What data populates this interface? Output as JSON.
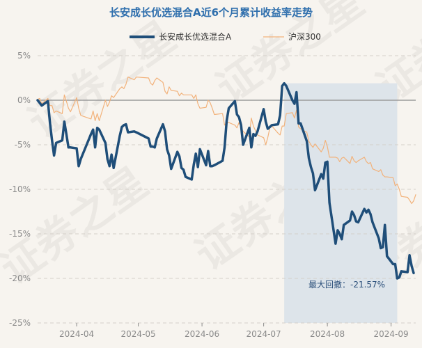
{
  "chart_data": {
    "type": "line",
    "title": "长安成长优选混合A近6个月累计收益率走势",
    "xlabel": "",
    "ylabel": "",
    "ylim": [
      -25,
      5
    ],
    "yticks": [
      "5%",
      "0%",
      "-5%",
      "-10%",
      "-15%",
      "-20%",
      "-25%"
    ],
    "ytick_values": [
      5,
      0,
      -5,
      -10,
      -15,
      -20,
      -25
    ],
    "xticks": [
      "2024-04",
      "2024-05",
      "2024-06",
      "2024-07",
      "2024-08",
      "2024-09"
    ],
    "xtick_dates": [
      "2024-04-01",
      "2024-05-01",
      "2024-06-01",
      "2024-07-01",
      "2024-08-01",
      "2024-09-01"
    ],
    "x_range": [
      "2024-03-13",
      "2024-09-13"
    ],
    "grid": "horizontal dashed",
    "legend_position": "top-center",
    "series": [
      {
        "name": "长安成长优选混合A",
        "color": "#1f4e79",
        "points": [
          [
            "2024-03-13",
            0.0
          ],
          [
            "2024-03-14",
            -0.3
          ],
          [
            "2024-03-15",
            -0.6
          ],
          [
            "2024-03-18",
            -0.1
          ],
          [
            "2024-03-19",
            -2.5
          ],
          [
            "2024-03-20",
            -4.5
          ],
          [
            "2024-03-21",
            -6.2
          ],
          [
            "2024-03-22",
            -4.8
          ],
          [
            "2024-03-25",
            -4.5
          ],
          [
            "2024-03-26",
            -2.4
          ],
          [
            "2024-03-27",
            -3.8
          ],
          [
            "2024-03-28",
            -5.3
          ],
          [
            "2024-03-29",
            -5.3
          ],
          [
            "2024-04-01",
            -5.4
          ],
          [
            "2024-04-02",
            -7.4
          ],
          [
            "2024-04-03",
            -6.6
          ],
          [
            "2024-04-08",
            -3.8
          ],
          [
            "2024-04-09",
            -3.3
          ],
          [
            "2024-04-10",
            -5.3
          ],
          [
            "2024-04-11",
            -3.1
          ],
          [
            "2024-04-12",
            -3.3
          ],
          [
            "2024-04-15",
            -4.8
          ],
          [
            "2024-04-16",
            -6.6
          ],
          [
            "2024-04-17",
            -7.4
          ],
          [
            "2024-04-18",
            -6.1
          ],
          [
            "2024-04-19",
            -7.6
          ],
          [
            "2024-04-22",
            -4.0
          ],
          [
            "2024-04-23",
            -3.0
          ],
          [
            "2024-04-24",
            -2.8
          ],
          [
            "2024-04-25",
            -2.7
          ],
          [
            "2024-04-26",
            -3.6
          ],
          [
            "2024-04-29",
            -3.5
          ],
          [
            "2024-04-30",
            -3.6
          ],
          [
            "2024-05-06",
            -4.3
          ],
          [
            "2024-05-07",
            -5.2
          ],
          [
            "2024-05-08",
            -5.2
          ],
          [
            "2024-05-09",
            -5.3
          ],
          [
            "2024-05-10",
            -4.3
          ],
          [
            "2024-05-13",
            -2.7
          ],
          [
            "2024-05-14",
            -3.5
          ],
          [
            "2024-05-15",
            -5.5
          ],
          [
            "2024-05-16",
            -6.2
          ],
          [
            "2024-05-17",
            -7.7
          ],
          [
            "2024-05-20",
            -5.8
          ],
          [
            "2024-05-21",
            -6.3
          ],
          [
            "2024-05-22",
            -7.6
          ],
          [
            "2024-05-23",
            -7.8
          ],
          [
            "2024-05-24",
            -8.6
          ],
          [
            "2024-05-27",
            -8.9
          ],
          [
            "2024-05-28",
            -7.2
          ],
          [
            "2024-05-29",
            -6.0
          ],
          [
            "2024-05-30",
            -7.5
          ],
          [
            "2024-05-31",
            -5.5
          ],
          [
            "2024-06-03",
            -7.3
          ],
          [
            "2024-06-04",
            -5.7
          ],
          [
            "2024-06-05",
            -7.4
          ],
          [
            "2024-06-06",
            -7.4
          ],
          [
            "2024-06-07",
            -7.3
          ],
          [
            "2024-06-11",
            -6.8
          ],
          [
            "2024-06-12",
            -5.3
          ],
          [
            "2024-06-13",
            -2.3
          ],
          [
            "2024-06-14",
            -0.9
          ],
          [
            "2024-06-17",
            -0.1
          ],
          [
            "2024-06-18",
            -1.6
          ],
          [
            "2024-06-19",
            -1.9
          ],
          [
            "2024-06-20",
            -2.8
          ],
          [
            "2024-06-21",
            -5.0
          ],
          [
            "2024-06-24",
            -3.1
          ],
          [
            "2024-06-25",
            -5.3
          ],
          [
            "2024-06-26",
            -3.8
          ],
          [
            "2024-06-27",
            -4.0
          ],
          [
            "2024-06-28",
            -3.5
          ],
          [
            "2024-07-01",
            -1.0
          ],
          [
            "2024-07-02",
            -2.4
          ],
          [
            "2024-07-03",
            -3.2
          ],
          [
            "2024-07-04",
            -3.0
          ],
          [
            "2024-07-05",
            -2.8
          ],
          [
            "2024-07-08",
            -2.7
          ],
          [
            "2024-07-09",
            -1.7
          ],
          [
            "2024-07-10",
            1.6
          ],
          [
            "2024-07-11",
            1.9
          ],
          [
            "2024-07-12",
            1.6
          ],
          [
            "2024-07-15",
            0.0
          ],
          [
            "2024-07-16",
            -0.4
          ],
          [
            "2024-07-17",
            0.9
          ],
          [
            "2024-07-18",
            -2.6
          ],
          [
            "2024-07-19",
            -2.6
          ],
          [
            "2024-07-22",
            -4.6
          ],
          [
            "2024-07-23",
            -6.5
          ],
          [
            "2024-07-24",
            -7.5
          ],
          [
            "2024-07-25",
            -8.2
          ],
          [
            "2024-07-26",
            -10.1
          ],
          [
            "2024-07-29",
            -8.3
          ],
          [
            "2024-07-30",
            -8.8
          ],
          [
            "2024-07-31",
            -7.0
          ],
          [
            "2024-08-01",
            -6.9
          ],
          [
            "2024-08-02",
            -11.5
          ],
          [
            "2024-08-05",
            -16.1
          ],
          [
            "2024-08-06",
            -14.6
          ],
          [
            "2024-08-07",
            -15.0
          ],
          [
            "2024-08-08",
            -15.6
          ],
          [
            "2024-08-09",
            -14.0
          ],
          [
            "2024-08-12",
            -13.5
          ],
          [
            "2024-08-13",
            -12.5
          ],
          [
            "2024-08-14",
            -12.9
          ],
          [
            "2024-08-15",
            -13.6
          ],
          [
            "2024-08-16",
            -13.7
          ],
          [
            "2024-08-19",
            -12.2
          ],
          [
            "2024-08-20",
            -12.6
          ],
          [
            "2024-08-21",
            -12.3
          ],
          [
            "2024-08-22",
            -12.8
          ],
          [
            "2024-08-23",
            -13.7
          ],
          [
            "2024-08-26",
            -15.5
          ],
          [
            "2024-08-27",
            -16.6
          ],
          [
            "2024-08-28",
            -16.5
          ],
          [
            "2024-08-29",
            -14.0
          ],
          [
            "2024-08-30",
            -17.5
          ],
          [
            "2024-09-02",
            -18.4
          ],
          [
            "2024-09-03",
            -18.4
          ],
          [
            "2024-09-04",
            -20.0
          ],
          [
            "2024-09-05",
            -19.9
          ],
          [
            "2024-09-06",
            -19.2
          ],
          [
            "2024-09-09",
            -19.3
          ],
          [
            "2024-09-10",
            -17.4
          ],
          [
            "2024-09-11",
            -18.6
          ],
          [
            "2024-09-12",
            -19.4
          ]
        ]
      },
      {
        "name": "沪深300",
        "color": "#f2b27b",
        "points": [
          [
            "2024-03-13",
            0.1
          ],
          [
            "2024-03-14",
            0.2
          ],
          [
            "2024-03-15",
            -0.4
          ],
          [
            "2024-03-18",
            0.2
          ],
          [
            "2024-03-19",
            -0.6
          ],
          [
            "2024-03-20",
            -0.6
          ],
          [
            "2024-03-21",
            -1.4
          ],
          [
            "2024-03-22",
            -1.2
          ],
          [
            "2024-03-25",
            -1.5
          ],
          [
            "2024-03-26",
            0.6
          ],
          [
            "2024-03-27",
            -0.1
          ],
          [
            "2024-03-28",
            -0.9
          ],
          [
            "2024-03-29",
            -1.3
          ],
          [
            "2024-04-01",
            0.3
          ],
          [
            "2024-04-02",
            -0.9
          ],
          [
            "2024-04-03",
            -1.7
          ],
          [
            "2024-04-08",
            -2.1
          ],
          [
            "2024-04-09",
            -1.2
          ],
          [
            "2024-04-10",
            -2.3
          ],
          [
            "2024-04-11",
            -1.5
          ],
          [
            "2024-04-12",
            -2.3
          ],
          [
            "2024-04-15",
            0.0
          ],
          [
            "2024-04-16",
            -0.7
          ],
          [
            "2024-04-17",
            -0.2
          ],
          [
            "2024-04-18",
            0.5
          ],
          [
            "2024-04-19",
            0.3
          ],
          [
            "2024-04-22",
            1.3
          ],
          [
            "2024-04-23",
            1.5
          ],
          [
            "2024-04-24",
            1.3
          ],
          [
            "2024-04-25",
            1.8
          ],
          [
            "2024-04-26",
            2.6
          ],
          [
            "2024-04-29",
            2.3
          ],
          [
            "2024-04-30",
            2.6
          ],
          [
            "2024-05-06",
            2.5
          ],
          [
            "2024-05-07",
            1.9
          ],
          [
            "2024-05-08",
            1.7
          ],
          [
            "2024-05-09",
            2.2
          ],
          [
            "2024-05-10",
            2.5
          ],
          [
            "2024-05-13",
            2.0
          ],
          [
            "2024-05-14",
            1.0
          ],
          [
            "2024-05-15",
            0.7
          ],
          [
            "2024-05-16",
            1.5
          ],
          [
            "2024-05-17",
            1.1
          ],
          [
            "2024-05-20",
            1.0
          ],
          [
            "2024-05-21",
            0.5
          ],
          [
            "2024-05-22",
            0.8
          ],
          [
            "2024-05-23",
            0.6
          ],
          [
            "2024-05-24",
            0.6
          ],
          [
            "2024-05-27",
            0.6
          ],
          [
            "2024-05-28",
            0.2
          ],
          [
            "2024-05-29",
            0.6
          ],
          [
            "2024-05-30",
            -0.4
          ],
          [
            "2024-05-31",
            -0.9
          ],
          [
            "2024-06-03",
            -0.8
          ],
          [
            "2024-06-04",
            0.0
          ],
          [
            "2024-06-05",
            -0.3
          ],
          [
            "2024-06-06",
            -0.9
          ],
          [
            "2024-06-07",
            -1.6
          ],
          [
            "2024-06-11",
            -1.5
          ],
          [
            "2024-06-12",
            -2.8
          ],
          [
            "2024-06-13",
            -2.5
          ],
          [
            "2024-06-14",
            -2.5
          ],
          [
            "2024-06-17",
            -2.8
          ],
          [
            "2024-06-18",
            -3.1
          ],
          [
            "2024-06-19",
            -2.5
          ],
          [
            "2024-06-20",
            -3.0
          ],
          [
            "2024-06-21",
            -3.5
          ],
          [
            "2024-06-24",
            -4.1
          ],
          [
            "2024-06-25",
            -2.0
          ],
          [
            "2024-06-26",
            -2.9
          ],
          [
            "2024-06-27",
            -3.4
          ],
          [
            "2024-06-28",
            -3.9
          ],
          [
            "2024-07-01",
            -4.2
          ],
          [
            "2024-07-02",
            -5.0
          ],
          [
            "2024-07-03",
            -4.2
          ],
          [
            "2024-07-04",
            -3.1
          ],
          [
            "2024-07-05",
            -2.9
          ],
          [
            "2024-07-08",
            -3.7
          ],
          [
            "2024-07-09",
            -3.9
          ],
          [
            "2024-07-10",
            -2.9
          ],
          [
            "2024-07-11",
            -2.9
          ],
          [
            "2024-07-12",
            -1.5
          ],
          [
            "2024-07-15",
            -1.4
          ],
          [
            "2024-07-16",
            -2.0
          ],
          [
            "2024-07-17",
            -1.1
          ],
          [
            "2024-07-18",
            -3.0
          ],
          [
            "2024-07-19",
            -3.2
          ],
          [
            "2024-07-22",
            -3.6
          ],
          [
            "2024-07-23",
            -4.6
          ],
          [
            "2024-07-24",
            -5.0
          ],
          [
            "2024-07-25",
            -5.3
          ],
          [
            "2024-07-26",
            -4.9
          ],
          [
            "2024-07-29",
            -5.8
          ],
          [
            "2024-07-30",
            -5.4
          ],
          [
            "2024-07-31",
            -4.5
          ],
          [
            "2024-08-01",
            -5.2
          ],
          [
            "2024-08-02",
            -6.4
          ],
          [
            "2024-08-05",
            -6.4
          ],
          [
            "2024-08-06",
            -6.5
          ],
          [
            "2024-08-07",
            -6.9
          ],
          [
            "2024-08-08",
            -6.5
          ],
          [
            "2024-08-09",
            -6.4
          ],
          [
            "2024-08-12",
            -7.1
          ],
          [
            "2024-08-13",
            -6.3
          ],
          [
            "2024-08-14",
            -6.8
          ],
          [
            "2024-08-15",
            -7.0
          ],
          [
            "2024-08-16",
            -6.8
          ],
          [
            "2024-08-19",
            -6.4
          ],
          [
            "2024-08-20",
            -6.9
          ],
          [
            "2024-08-21",
            -7.1
          ],
          [
            "2024-08-22",
            -7.0
          ],
          [
            "2024-08-23",
            -7.7
          ],
          [
            "2024-08-26",
            -8.0
          ],
          [
            "2024-08-27",
            -7.8
          ],
          [
            "2024-08-28",
            -8.4
          ],
          [
            "2024-08-29",
            -8.6
          ],
          [
            "2024-08-30",
            -8.6
          ],
          [
            "2024-09-02",
            -8.7
          ],
          [
            "2024-09-03",
            -9.6
          ],
          [
            "2024-09-04",
            -9.4
          ],
          [
            "2024-09-05",
            -10.0
          ],
          [
            "2024-09-06",
            -10.8
          ],
          [
            "2024-09-09",
            -10.9
          ],
          [
            "2024-09-10",
            -11.2
          ],
          [
            "2024-09-11",
            -11.6
          ],
          [
            "2024-09-12",
            -11.3
          ],
          [
            "2024-09-13",
            -10.6
          ]
        ]
      }
    ],
    "max_drawdown": {
      "label": "最大回撤：-21.57%",
      "start": "2024-07-11",
      "end": "2024-09-04"
    },
    "watermark_text": "证券之星",
    "colors": {
      "background": "#f7f4ef",
      "title": "#2f6fad",
      "drawdown_fill": "#dde4ea",
      "grid": "#d4d0ca",
      "zero_line": "#9b9b9b"
    }
  }
}
